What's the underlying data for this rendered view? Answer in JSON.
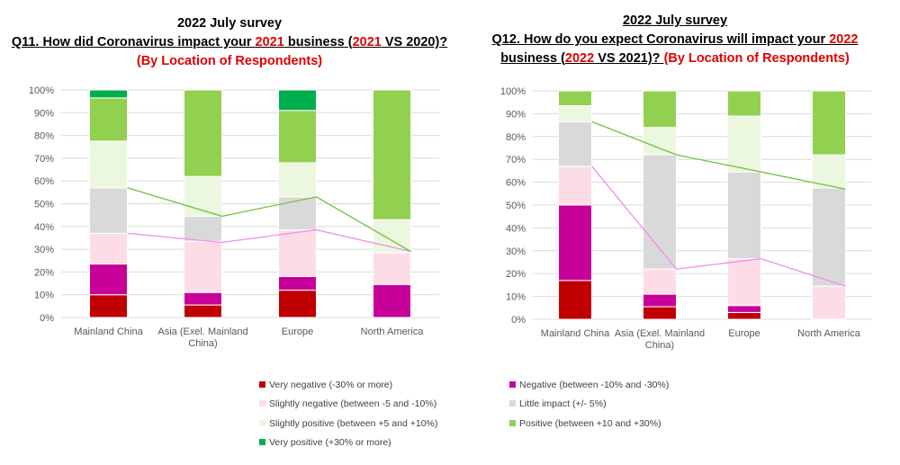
{
  "chart_data": [
    {
      "type": "bar",
      "stacked": true,
      "title_line1": "2022 July survey",
      "title_q_prefix": "Q11. How did Coronavirus impact your ",
      "title_q_year": "2021",
      "title_q_mid": " business (",
      "title_q_year2": "2021",
      "title_q_suffix": " VS 2020)?",
      "title_line3": "(By Location of Respondents)",
      "categories": [
        "Mainland China",
        "Asia (Exel. Mainland|China)",
        "Europe",
        "North America"
      ],
      "ylim": [
        0,
        100
      ],
      "yticks": [
        "0%",
        "10%",
        "20%",
        "30%",
        "40%",
        "50%",
        "60%",
        "70%",
        "80%",
        "90%",
        "100%"
      ],
      "series": [
        {
          "name": "Very negative (-30% or more)",
          "color": "#c00000",
          "values": [
            10,
            5.5,
            12,
            0
          ]
        },
        {
          "name": "Negative (between -10% and -30%)",
          "color": "#c8009a",
          "values": [
            13.5,
            5.5,
            6,
            14.5
          ]
        },
        {
          "name": "Slightly negative (between -5 and -10%)",
          "color": "#fcdde6",
          "values": [
            13.5,
            22.5,
            20.5,
            14
          ]
        },
        {
          "name": "Little impact (+/- 5%)",
          "color": "#d9d9d9",
          "values": [
            20,
            11,
            14.5,
            0
          ]
        },
        {
          "name": "Slightly positive (between +5 and +10%)",
          "color": "#ebf7df",
          "values": [
            20.5,
            17.5,
            15,
            14.5
          ]
        },
        {
          "name": "Positive (between +10 and +30%)",
          "color": "#92d050",
          "values": [
            19,
            38,
            23,
            57
          ]
        },
        {
          "name": "Very positive (+30% or more)",
          "color": "#00b050",
          "values": [
            3.5,
            0,
            9,
            0
          ]
        }
      ],
      "trend_lines": [
        {
          "color": "#f08cf0",
          "values": [
            37,
            33,
            38.5,
            29
          ]
        },
        {
          "color": "#70c040",
          "values": [
            57,
            44.5,
            53,
            29
          ]
        }
      ]
    },
    {
      "type": "bar",
      "stacked": true,
      "title_line1": "2022 July survey",
      "title_q_prefix": "Q12. How do you expect Coronavirus will impact your ",
      "title_q_year": "2022",
      "title_q_mid": "business (",
      "title_q_year2": "2022",
      "title_q_suffix": " VS 2021)? ",
      "title_line3": "(By Location of Respondents)",
      "categories": [
        "Mainland China",
        "Asia (Exel. Mainland|China)",
        "Europe",
        "North America"
      ],
      "ylim": [
        0,
        100
      ],
      "yticks": [
        "0%",
        "10%",
        "20%",
        "30%",
        "40%",
        "50%",
        "60%",
        "70%",
        "80%",
        "90%",
        "100%"
      ],
      "series": [
        {
          "name": "Very negative (-30% or more)",
          "color": "#c00000",
          "values": [
            17,
            5.5,
            3,
            0
          ]
        },
        {
          "name": "Negative (between -10% and -30%)",
          "color": "#c8009a",
          "values": [
            33,
            5.5,
            3,
            0
          ]
        },
        {
          "name": "Slightly negative (between -5 and -10%)",
          "color": "#fcdde6",
          "values": [
            17,
            11,
            20.5,
            14.5
          ]
        },
        {
          "name": "Little impact (+/- 5%)",
          "color": "#d9d9d9",
          "values": [
            19.5,
            50,
            38,
            43
          ]
        },
        {
          "name": "Slightly positive (between +5 and +10%)",
          "color": "#ebf7df",
          "values": [
            7,
            12,
            24.5,
            14.5
          ]
        },
        {
          "name": "Positive (between +10 and +30%)",
          "color": "#92d050",
          "values": [
            6.5,
            16,
            11,
            28
          ]
        },
        {
          "name": "Very positive (+30% or more)",
          "color": "#00b050",
          "values": [
            0,
            0,
            0,
            0
          ]
        }
      ],
      "trend_lines": [
        {
          "color": "#f08cf0",
          "values": [
            67,
            22,
            26.5,
            14.5
          ]
        },
        {
          "color": "#70c040",
          "values": [
            86.5,
            72,
            64.5,
            57
          ]
        }
      ]
    }
  ],
  "legend": [
    {
      "label": "Very negative (-30% or more)",
      "color": "#c00000"
    },
    {
      "label": "Negative (between -10% and -30%)",
      "color": "#c8009a"
    },
    {
      "label": "Slightly negative (between -5 and -10%)",
      "color": "#fcdde6"
    },
    {
      "label": "Little impact (+/- 5%)",
      "color": "#d9d9d9"
    },
    {
      "label": "Slightly positive (between +5 and +10%)",
      "color": "#ebf7df"
    },
    {
      "label": "Positive (between +10 and +30%)",
      "color": "#92d050"
    },
    {
      "label": "Very positive (+30% or more)",
      "color": "#00b050"
    }
  ]
}
